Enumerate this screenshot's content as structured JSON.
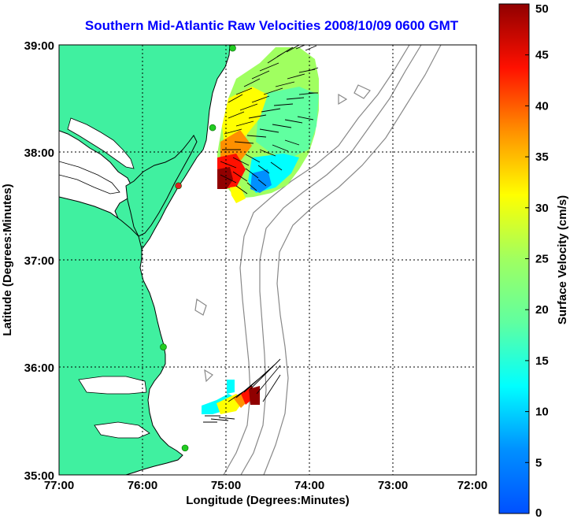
{
  "title": "Southern Mid-Atlantic Raw Velocities 2008/10/09 0600 GMT",
  "map": {
    "xlabel": "Longitude (Degrees:Minutes)",
    "ylabel": "Latitude (Degrees:Minutes)",
    "lon_range": [
      -77,
      -72
    ],
    "lat_range": [
      35,
      39
    ],
    "x_ticks": [
      {
        "value": -77,
        "label": "77:00"
      },
      {
        "value": -76,
        "label": "76:00"
      },
      {
        "value": -75,
        "label": "75:00"
      },
      {
        "value": -74,
        "label": "74:00"
      },
      {
        "value": -73,
        "label": "73:00"
      },
      {
        "value": -72,
        "label": "72:00"
      }
    ],
    "y_ticks": [
      {
        "value": 39,
        "label": "39:00"
      },
      {
        "value": 38,
        "label": "38:00"
      },
      {
        "value": 37,
        "label": "37:00"
      },
      {
        "value": 36,
        "label": "36:00"
      },
      {
        "value": 35,
        "label": "35:00"
      }
    ],
    "grid": "dotted",
    "land_color": "#40f0a0",
    "ocean_color": "#ffffff",
    "bathymetry_color": "#888888"
  },
  "colorbar": {
    "label": "Surface Velocity (cm/s)",
    "range": [
      0,
      50
    ],
    "ticks": [
      {
        "value": 0,
        "label": "0"
      },
      {
        "value": 5,
        "label": "5"
      },
      {
        "value": 10,
        "label": "10"
      },
      {
        "value": 15,
        "label": "15"
      },
      {
        "value": 20,
        "label": "20"
      },
      {
        "value": 25,
        "label": "25"
      },
      {
        "value": 30,
        "label": "30"
      },
      {
        "value": 35,
        "label": "35"
      },
      {
        "value": 40,
        "label": "40"
      },
      {
        "value": 45,
        "label": "45"
      },
      {
        "value": 50,
        "label": "50"
      }
    ],
    "colormap": "jet"
  },
  "stations": [
    {
      "lon": -74.92,
      "lat": 38.97,
      "color": "#22cc22"
    },
    {
      "lon": -75.16,
      "lat": 38.23,
      "color": "#22cc22"
    },
    {
      "lon": -75.57,
      "lat": 37.69,
      "color": "#dd2222"
    },
    {
      "lon": -75.75,
      "lat": 36.19,
      "color": "#22cc22"
    },
    {
      "lon": -75.49,
      "lat": 35.25,
      "color": "#22cc22"
    }
  ],
  "velocity_regions": [
    {
      "name": "north",
      "lon_range": [
        -75.1,
        -74.0
      ],
      "lat_range": [
        37.55,
        39.0
      ]
    },
    {
      "name": "south",
      "lon_range": [
        -75.3,
        -74.55
      ],
      "lat_range": [
        35.52,
        35.88
      ]
    }
  ]
}
